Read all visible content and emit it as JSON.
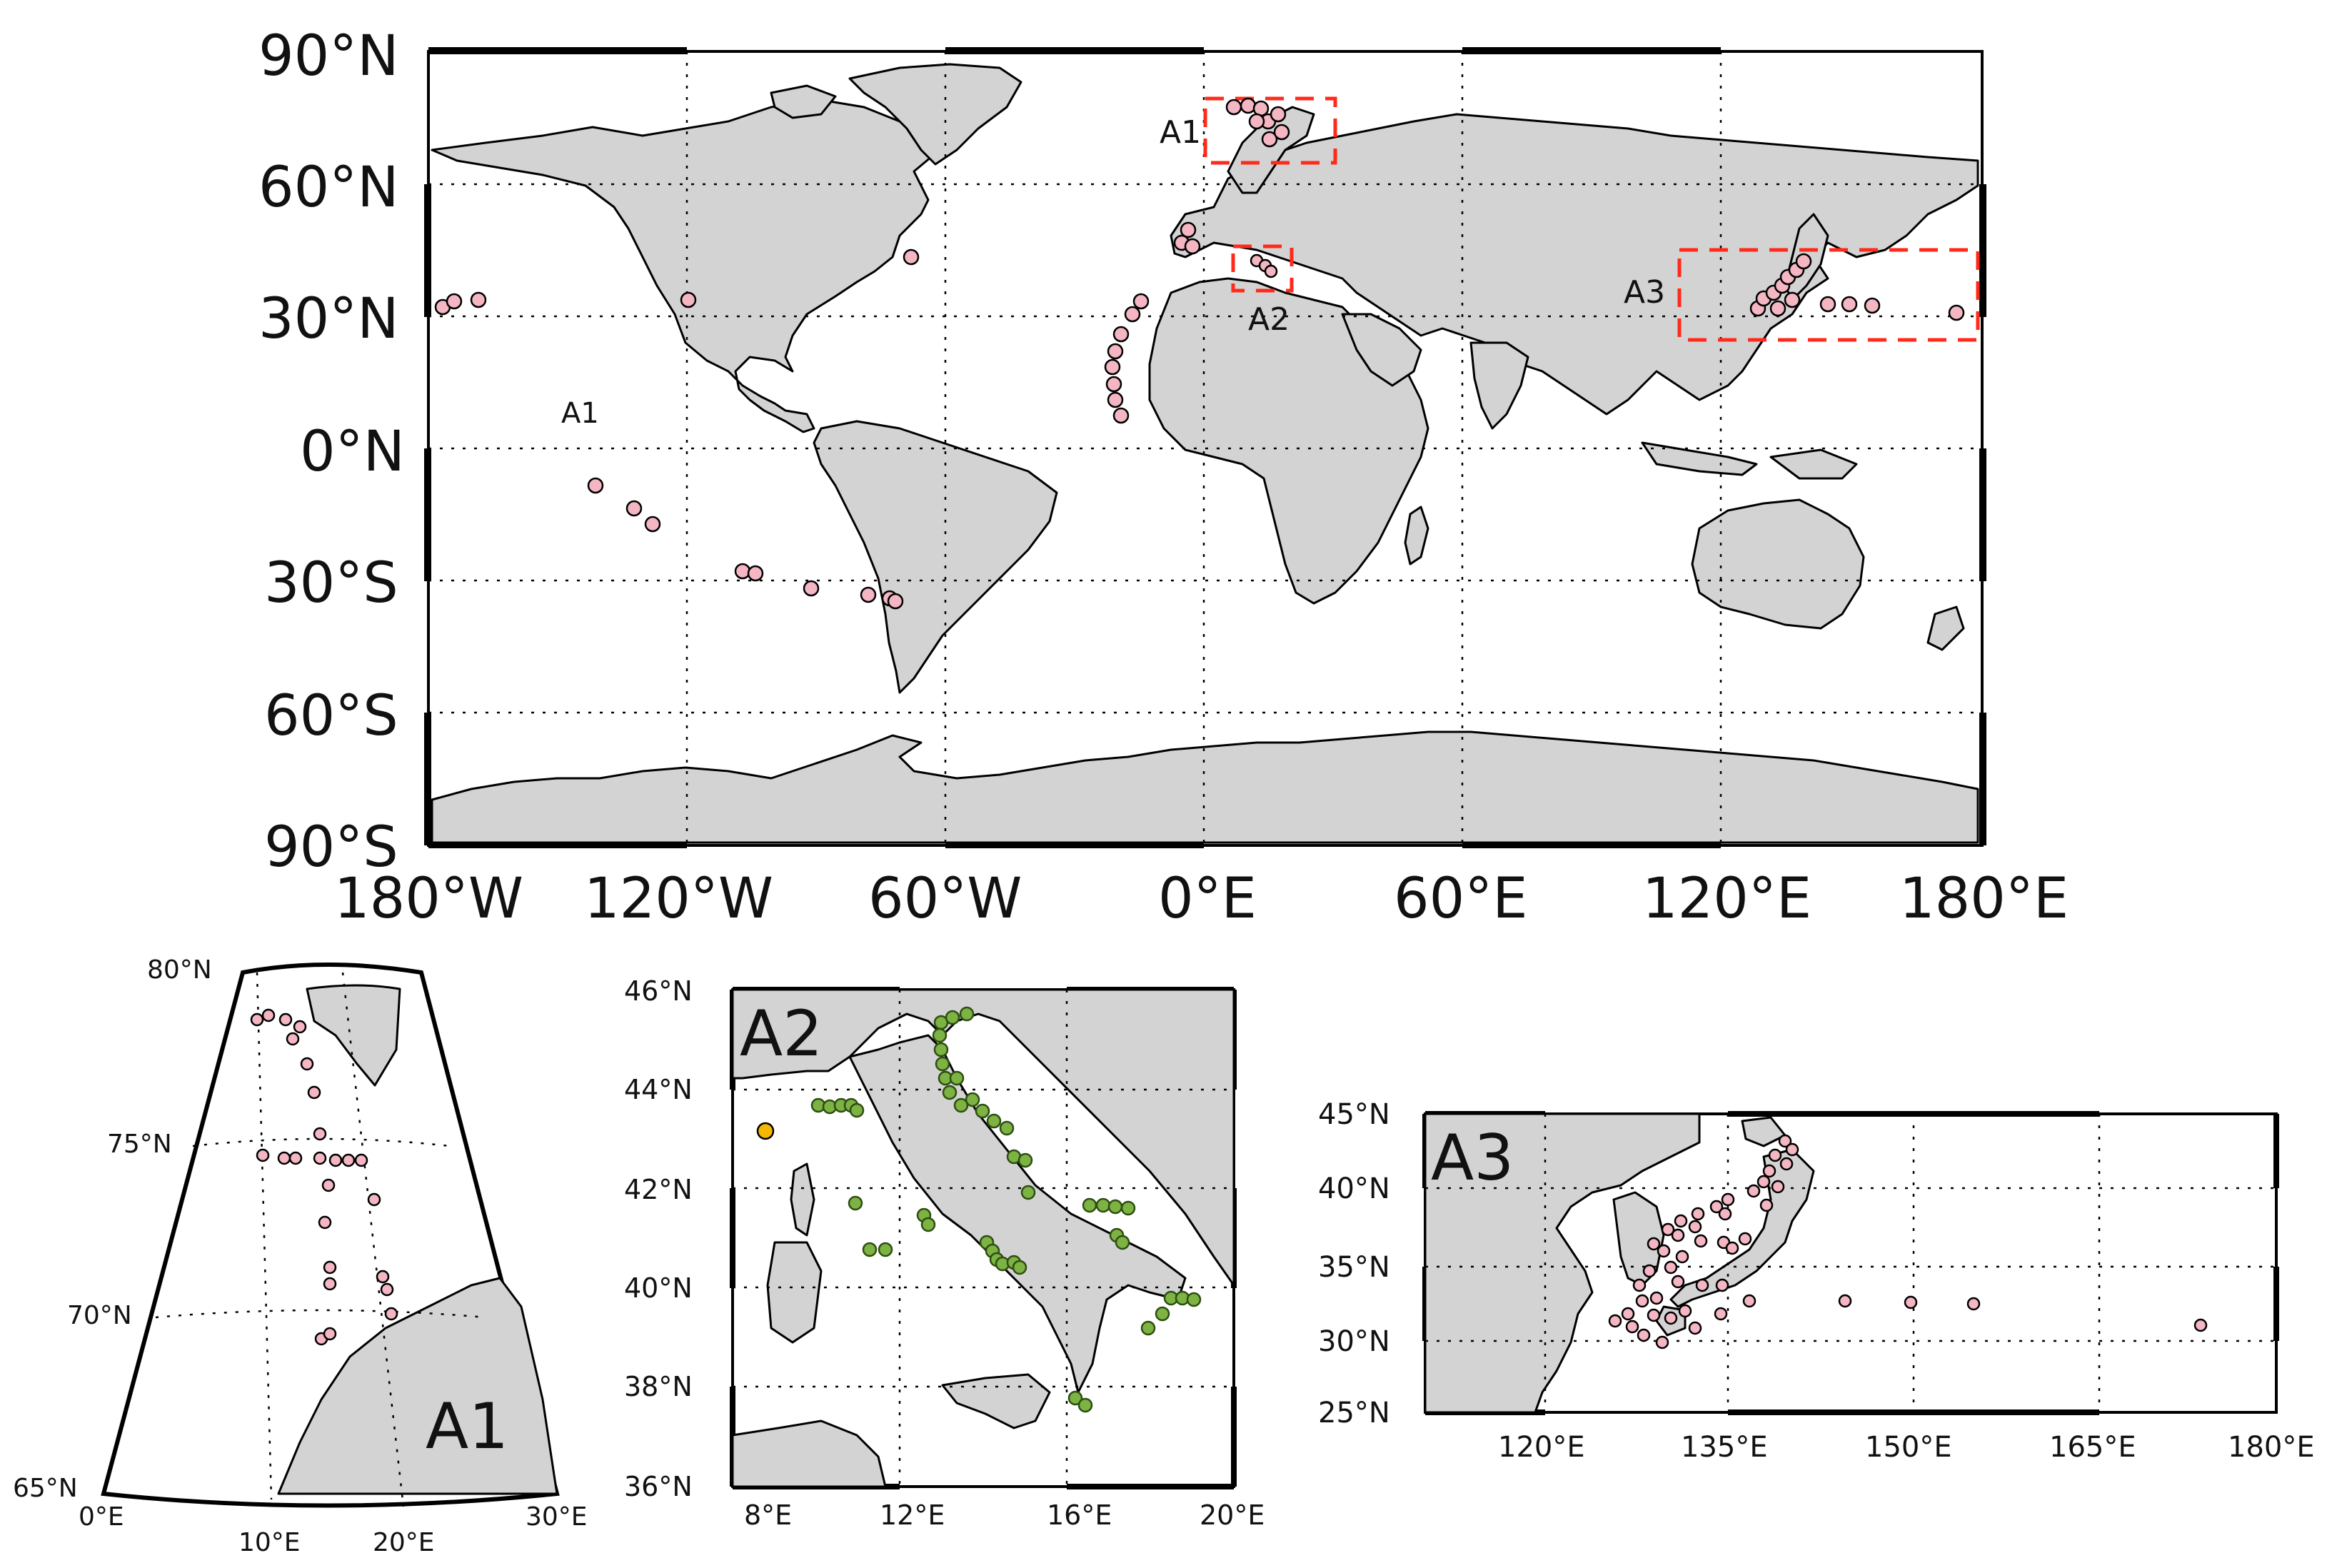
{
  "main_map": {
    "lat_labels": [
      "90°N",
      "60°N",
      "30°N",
      "0°N",
      "30°S",
      "60°S",
      "90°S"
    ],
    "lon_labels": [
      "180°W",
      "120°W",
      "60°W",
      "0°E",
      "60°E",
      "120°E",
      "180°E"
    ],
    "region_labels": [
      "A1",
      "A2",
      "A3"
    ],
    "stray_label": "A1",
    "point_color": "#f4b6c2",
    "land_color": "#d3d3d3",
    "box_color": "#ff2a1a"
  },
  "insets": {
    "a1": {
      "title": "A1",
      "lat_labels": [
        "80°N",
        "75°N",
        "70°N",
        "65°N"
      ],
      "lon_labels": [
        "0°E",
        "10°E",
        "20°E",
        "30°E"
      ]
    },
    "a2": {
      "title": "A2",
      "lat_labels": [
        "46°N",
        "44°N",
        "42°N",
        "40°N",
        "38°N",
        "36°N"
      ],
      "lon_labels": [
        "8°E",
        "12°E",
        "16°E",
        "20°E"
      ],
      "point_colors": [
        "#7cb342",
        "#f5b800"
      ]
    },
    "a3": {
      "title": "A3",
      "lat_labels": [
        "45°N",
        "40°N",
        "35°N",
        "30°N",
        "25°N"
      ],
      "lon_labels": [
        "120°E",
        "135°E",
        "150°E",
        "165°E",
        "180°E"
      ]
    }
  }
}
